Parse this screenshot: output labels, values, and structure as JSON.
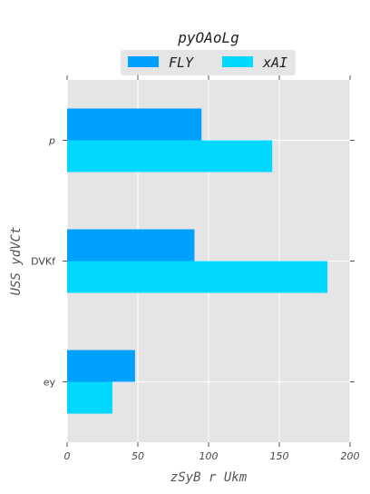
{
  "chart_data": {
    "type": "bar",
    "orientation": "horizontal",
    "categories": [
      "p",
      "DVKf",
      "ey"
    ],
    "series": [
      {
        "name": "FLY",
        "color": "#00a0ff",
        "values": [
          95,
          90,
          48
        ]
      },
      {
        "name": "xAI",
        "color": "#00d8ff",
        "values": [
          145,
          184,
          32
        ]
      }
    ],
    "xlabel": "zSyB r Ukm",
    "ylabel": "USS ydVCt",
    "xlim": [
      0,
      200
    ],
    "xticks": [
      0,
      50,
      100,
      150,
      200
    ],
    "legend_title": "pyOAoLg",
    "legend_placement": "top-center",
    "grid": true,
    "background": "#e5e5e5",
    "grid_color": "#ffffff"
  }
}
